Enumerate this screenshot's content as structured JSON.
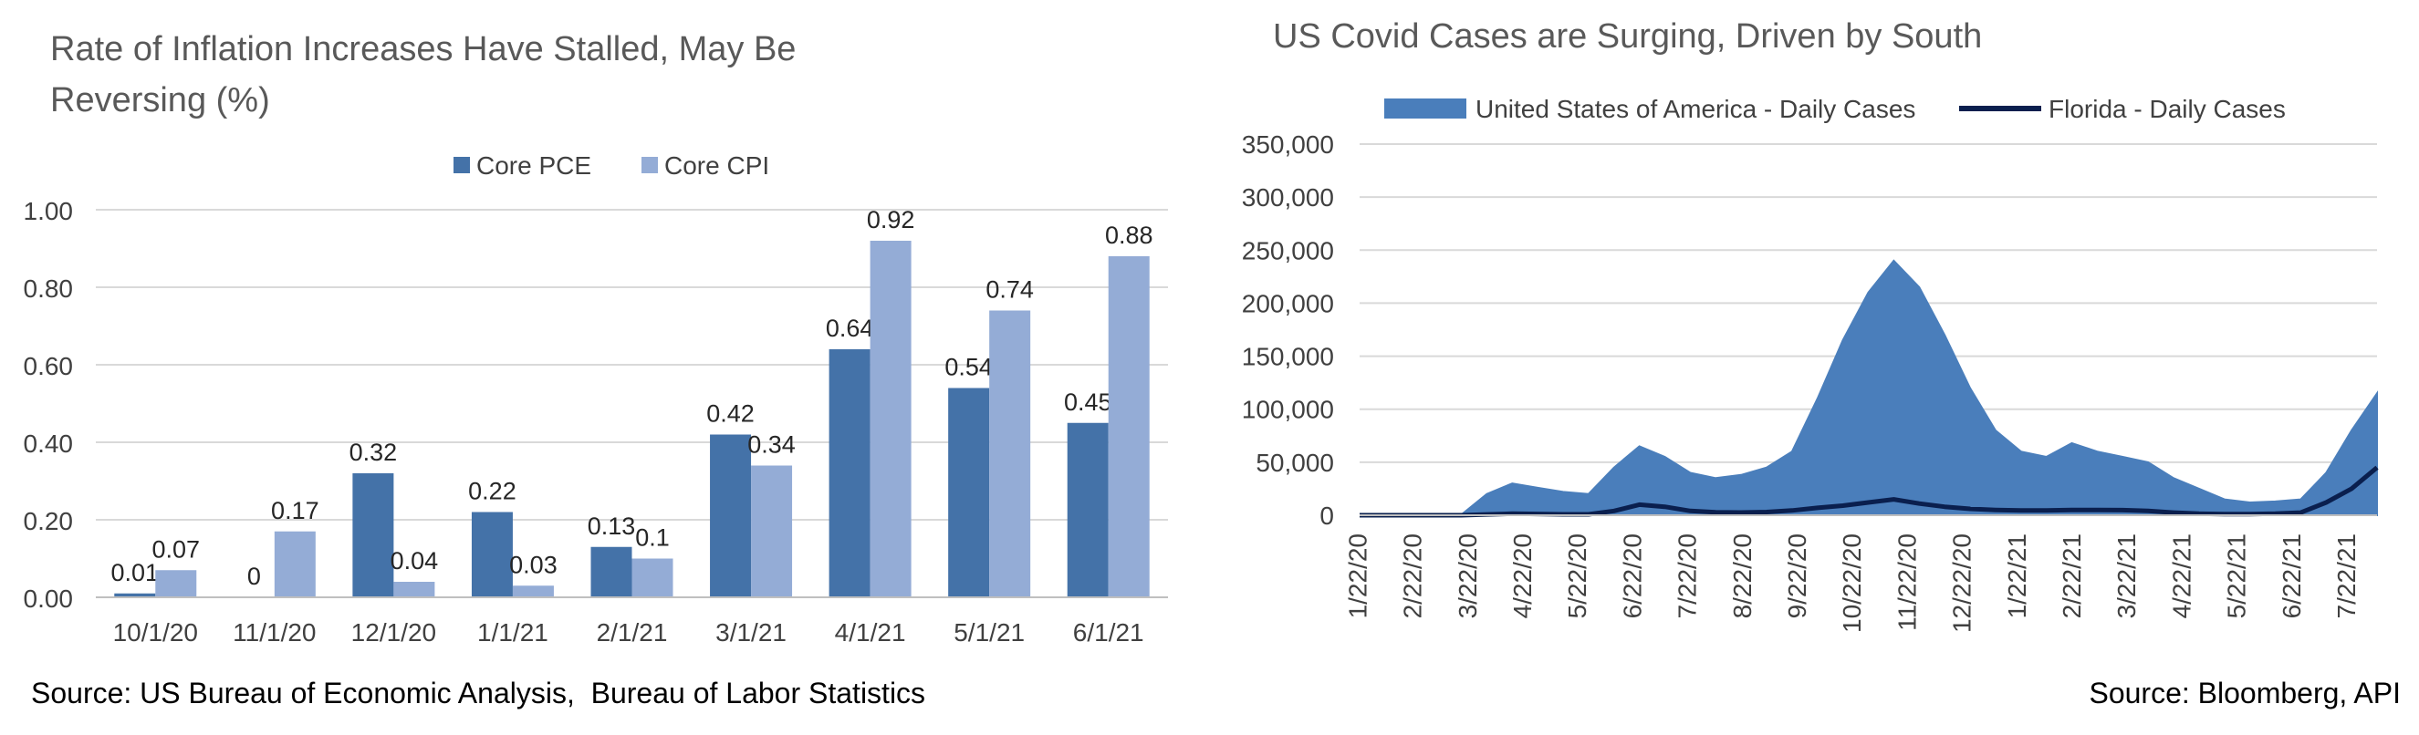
{
  "chart_data": [
    {
      "type": "bar",
      "title": "Rate of Inflation Increases Have Stalled, May Be Reversing (%)",
      "title_lines": [
        "Rate of Inflation Increases Have Stalled, May Be",
        "Reversing (%)"
      ],
      "categories": [
        "10/1/20",
        "11/1/20",
        "12/1/20",
        "1/1/21",
        "2/1/21",
        "3/1/21",
        "4/1/21",
        "5/1/21",
        "6/1/21"
      ],
      "series": [
        {
          "name": "Core PCE",
          "color": "#4472a8",
          "values": [
            0.01,
            0,
            0.32,
            0.22,
            0.13,
            0.42,
            0.64,
            0.54,
            0.45
          ]
        },
        {
          "name": "Core CPI",
          "color": "#94acd6",
          "values": [
            0.07,
            0.17,
            0.04,
            0.03,
            0.1,
            0.34,
            0.92,
            0.74,
            0.88
          ]
        }
      ],
      "data_labels": [
        [
          "0.01",
          "0",
          "0.32",
          "0.22",
          "0.13",
          "0.42",
          "0.64",
          "0.54",
          "0.45"
        ],
        [
          "0.07",
          "0.17",
          "0.04",
          "0.03",
          "0.1",
          "0.34",
          "0.92",
          "0.74",
          "0.88"
        ]
      ],
      "yticks": [
        "0.00",
        "0.20",
        "0.40",
        "0.60",
        "0.80",
        "1.00"
      ],
      "ylim": [
        0,
        1.0
      ],
      "grid": true,
      "legend": "top-center"
    },
    {
      "type": "area",
      "title": "US Covid Cases are Surging, Driven by South",
      "x_tick_labels": [
        "1/22/20",
        "2/22/20",
        "3/22/20",
        "4/22/20",
        "5/22/20",
        "6/22/20",
        "7/22/20",
        "8/22/20",
        "9/22/20",
        "10/22/20",
        "11/22/20",
        "12/22/20",
        "1/22/21",
        "2/22/21",
        "3/22/21",
        "4/22/21",
        "5/22/21",
        "6/22/21",
        "7/22/21"
      ],
      "series": [
        {
          "name": "United States of America - Daily Cases",
          "kind": "area",
          "color": "#4a7ebb",
          "values": [
            0,
            0,
            0,
            0,
            500,
            20000,
            30000,
            26000,
            22000,
            20000,
            45000,
            65000,
            55000,
            40000,
            35000,
            38000,
            45000,
            60000,
            110000,
            165000,
            210000,
            240000,
            215000,
            170000,
            120000,
            80000,
            60000,
            55000,
            68000,
            60000,
            55000,
            50000,
            35000,
            25000,
            15000,
            12000,
            13000,
            15000,
            40000,
            80000,
            115000
          ]
        },
        {
          "name": "Florida - Daily Cases",
          "kind": "line",
          "color": "#0a1f4e",
          "values": [
            0,
            0,
            0,
            0,
            0,
            800,
            1500,
            1200,
            900,
            900,
            4000,
            10000,
            8000,
            4000,
            2800,
            2600,
            3000,
            4500,
            7000,
            9000,
            12000,
            15000,
            11000,
            8000,
            6000,
            5000,
            4500,
            4500,
            5000,
            5000,
            4800,
            4000,
            2500,
            1500,
            1000,
            1000,
            1500,
            2500,
            12000,
            25000,
            45000
          ]
        }
      ],
      "yticks": [
        "0",
        "50,000",
        "100,000",
        "150,000",
        "200,000",
        "250,000",
        "300,000",
        "350,000"
      ],
      "ylim": [
        0,
        350000
      ],
      "grid": true,
      "legend": "top-center"
    }
  ],
  "sources": {
    "left": "Source: US Bureau of Economic Analysis,  Bureau of Labor Statistics",
    "right": "Source: Bloomberg, API"
  }
}
